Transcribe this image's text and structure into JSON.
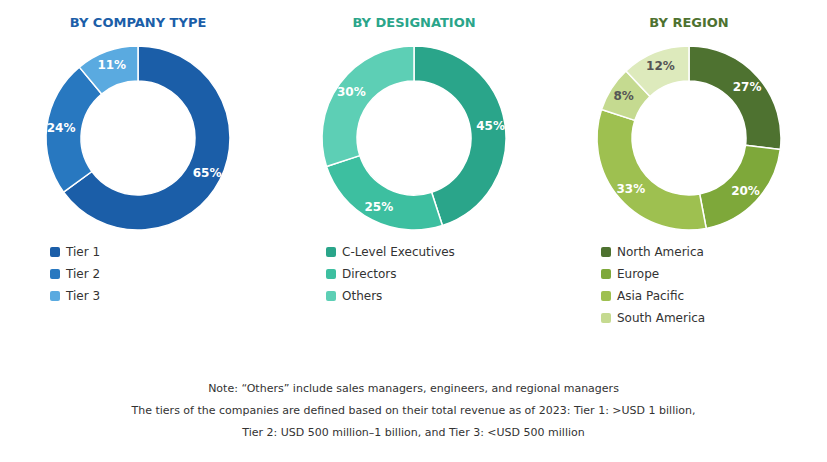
{
  "chart_data": [
    {
      "type": "pie",
      "title": "BY COMPANY TYPE",
      "categories": [
        "Tier 1",
        "Tier 2",
        "Tier 3"
      ],
      "values": [
        65,
        24,
        11
      ],
      "value_labels": [
        "65%",
        "24%",
        "11%"
      ],
      "colors": [
        "#1b5ea8",
        "#2878c0",
        "#5aaae0"
      ],
      "data_labels": true,
      "legend": "bottom"
    },
    {
      "type": "pie",
      "title": "BY DESIGNATION",
      "categories": [
        "C-Level Executives",
        "Directors",
        "Others"
      ],
      "values": [
        45,
        25,
        30
      ],
      "value_labels": [
        "45%",
        "25%",
        "30%"
      ],
      "colors": [
        "#2aa58a",
        "#3dbfa0",
        "#5dcfb5"
      ],
      "data_labels": true,
      "legend": "bottom"
    },
    {
      "type": "pie",
      "title": "BY REGION",
      "categories": [
        "North America",
        "Europe",
        "Asia Pacific",
        "South America",
        null
      ],
      "values": [
        27,
        20,
        33,
        8,
        12
      ],
      "value_labels": [
        "27%",
        "20%",
        "33%",
        "8%",
        "12%"
      ],
      "colors": [
        "#4e7230",
        "#7ea83a",
        "#9ec050",
        "#c5da90",
        "#ddeabc"
      ],
      "data_labels": true,
      "legend": "bottom",
      "annotations": [
        "Note: “Others” include sales managers, engineers, and regional managers",
        "The tiers of the companies are defined based on their total revenue as of 2023: Tier 1: >USD 1 billion,",
        "Tier 2: USD 500 million–1 billion, and Tier 3: <USD 500 million"
      ]
    }
  ]
}
